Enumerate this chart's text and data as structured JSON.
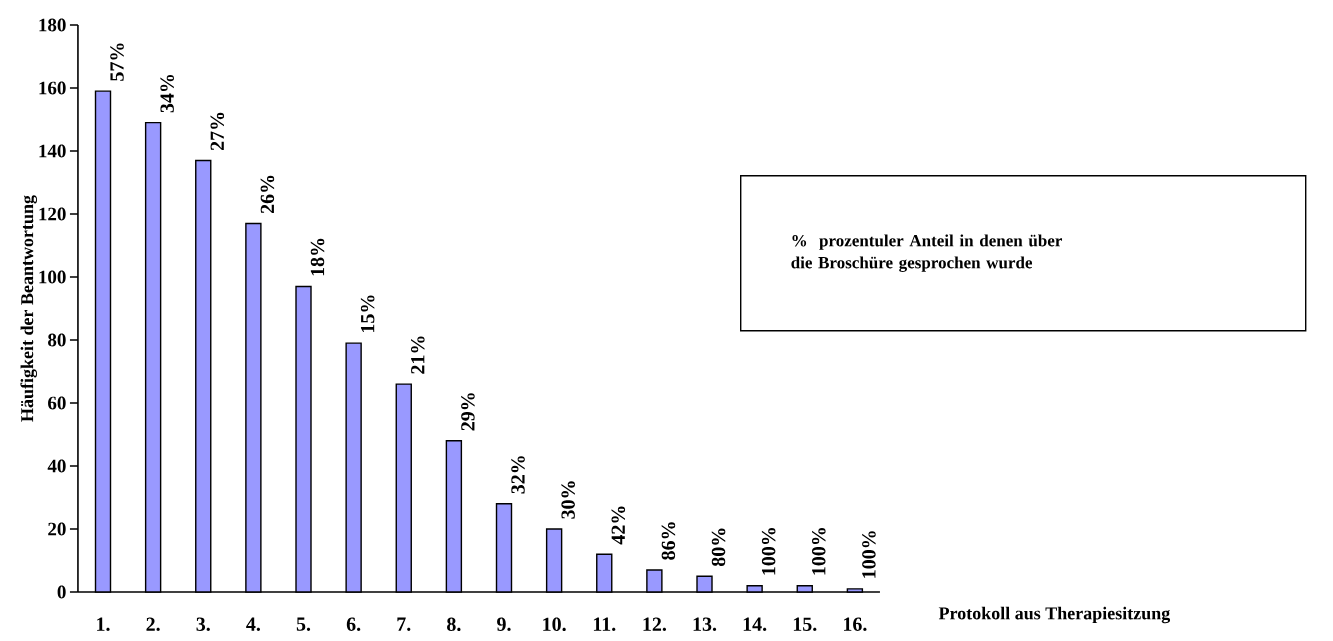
{
  "chart_data": {
    "type": "bar",
    "xlabel": "Protokoll aus Therapiesitzung",
    "ylabel": "Häufigkeit der Beantwortung",
    "categories": [
      "1.",
      "2.",
      "3.",
      "4.",
      "5.",
      "6.",
      "7.",
      "8.",
      "9.",
      "10.",
      "11.",
      "12.",
      "13.",
      "14.",
      "15.",
      "16."
    ],
    "values": [
      159,
      149,
      137,
      117,
      97,
      79,
      66,
      48,
      28,
      20,
      12,
      7,
      5,
      2,
      2,
      1
    ],
    "color": "#9999ff",
    "ylim": [
      0,
      180
    ],
    "yticks": [
      0,
      20,
      40,
      60,
      80,
      100,
      120,
      140,
      160,
      180
    ],
    "annotations": [
      "%  prozentuler Anteil in denen über die Broschüre gesprochen wurde",
      {
        "text": "57%",
        "x": "1.",
        "y": 159
      },
      {
        "text": "34%",
        "x": "2.",
        "y": 149
      },
      {
        "text": "27%",
        "x": "3.",
        "y": 137
      },
      {
        "text": "26%",
        "x": "4.",
        "y": 117
      },
      {
        "text": "18%",
        "x": "5.",
        "y": 97
      },
      {
        "text": "15%",
        "x": "6.",
        "y": 79
      },
      {
        "text": "21%",
        "x": "7.",
        "y": 66
      },
      {
        "text": "29%",
        "x": "8.",
        "y": 48
      },
      {
        "text": "32%",
        "x": "9.",
        "y": 28
      },
      {
        "text": "30%",
        "x": "10.",
        "y": 20
      },
      {
        "text": "42%",
        "x": "11.",
        "y": 12
      },
      {
        "text": "86%",
        "x": "12.",
        "y": 7
      },
      {
        "text": "80%",
        "x": "13.",
        "y": 5
      },
      {
        "text": "100%",
        "x": "14.",
        "y": 2
      },
      {
        "text": "100%",
        "x": "15.",
        "y": 2
      },
      {
        "text": "100%",
        "x": "16.",
        "y": 1
      }
    ]
  }
}
